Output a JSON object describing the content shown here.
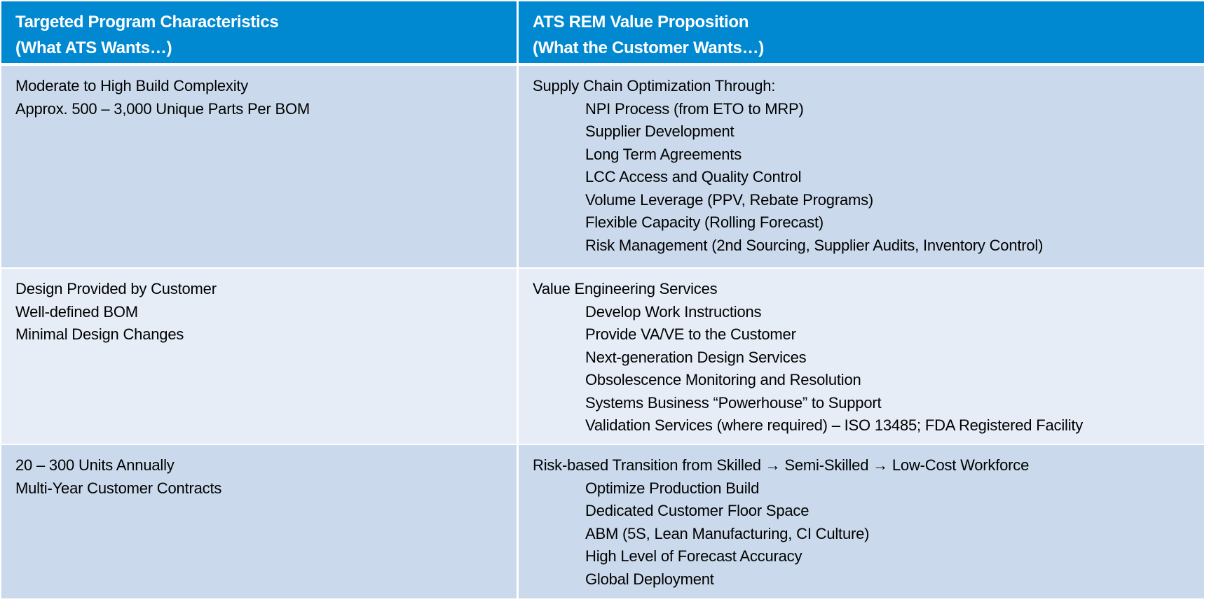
{
  "header": {
    "left": {
      "line1": "Targeted Program Characteristics",
      "line2": "(What ATS Wants…)"
    },
    "right": {
      "line1": "ATS REM Value Proposition",
      "line2": "(What the Customer Wants…)"
    }
  },
  "rows": [
    {
      "left": [
        "Moderate to High Build Complexity",
        "Approx. 500 – 3,000 Unique Parts Per BOM"
      ],
      "right": {
        "title": "Supply Chain Optimization Through:",
        "items": [
          "NPI Process (from ETO to MRP)",
          "Supplier Development",
          "Long Term Agreements",
          "LCC Access and Quality Control",
          "Volume Leverage (PPV, Rebate Programs)",
          "Flexible Capacity (Rolling Forecast)",
          "Risk Management (2nd Sourcing, Supplier Audits, Inventory Control)"
        ]
      }
    },
    {
      "left": [
        "Design Provided by Customer",
        "Well-defined BOM",
        "Minimal Design Changes"
      ],
      "right": {
        "title": "Value Engineering Services",
        "items": [
          "Develop Work Instructions",
          "Provide VA/VE to the Customer",
          "Next-generation Design Services",
          "Obsolescence Monitoring and Resolution",
          "Systems Business “Powerhouse” to Support",
          "Validation Services (where required) – ISO 13485; FDA Registered Facility"
        ]
      }
    },
    {
      "left": [
        "20 – 300 Units Annually",
        "Multi-Year Customer Contracts"
      ],
      "right": {
        "title": "Risk-based Transition from Skilled → Semi-Skilled → Low-Cost Workforce",
        "items": [
          "Optimize Production Build",
          "Dedicated Customer Floor Space",
          "ABM (5S, Lean Manufacturing, CI Culture)",
          "High Level of Forecast Accuracy",
          "Global Deployment"
        ]
      }
    }
  ],
  "colors": {
    "header_bg": "#0088d1",
    "row_dark": "#cadaec",
    "row_light": "#e6edf7"
  }
}
